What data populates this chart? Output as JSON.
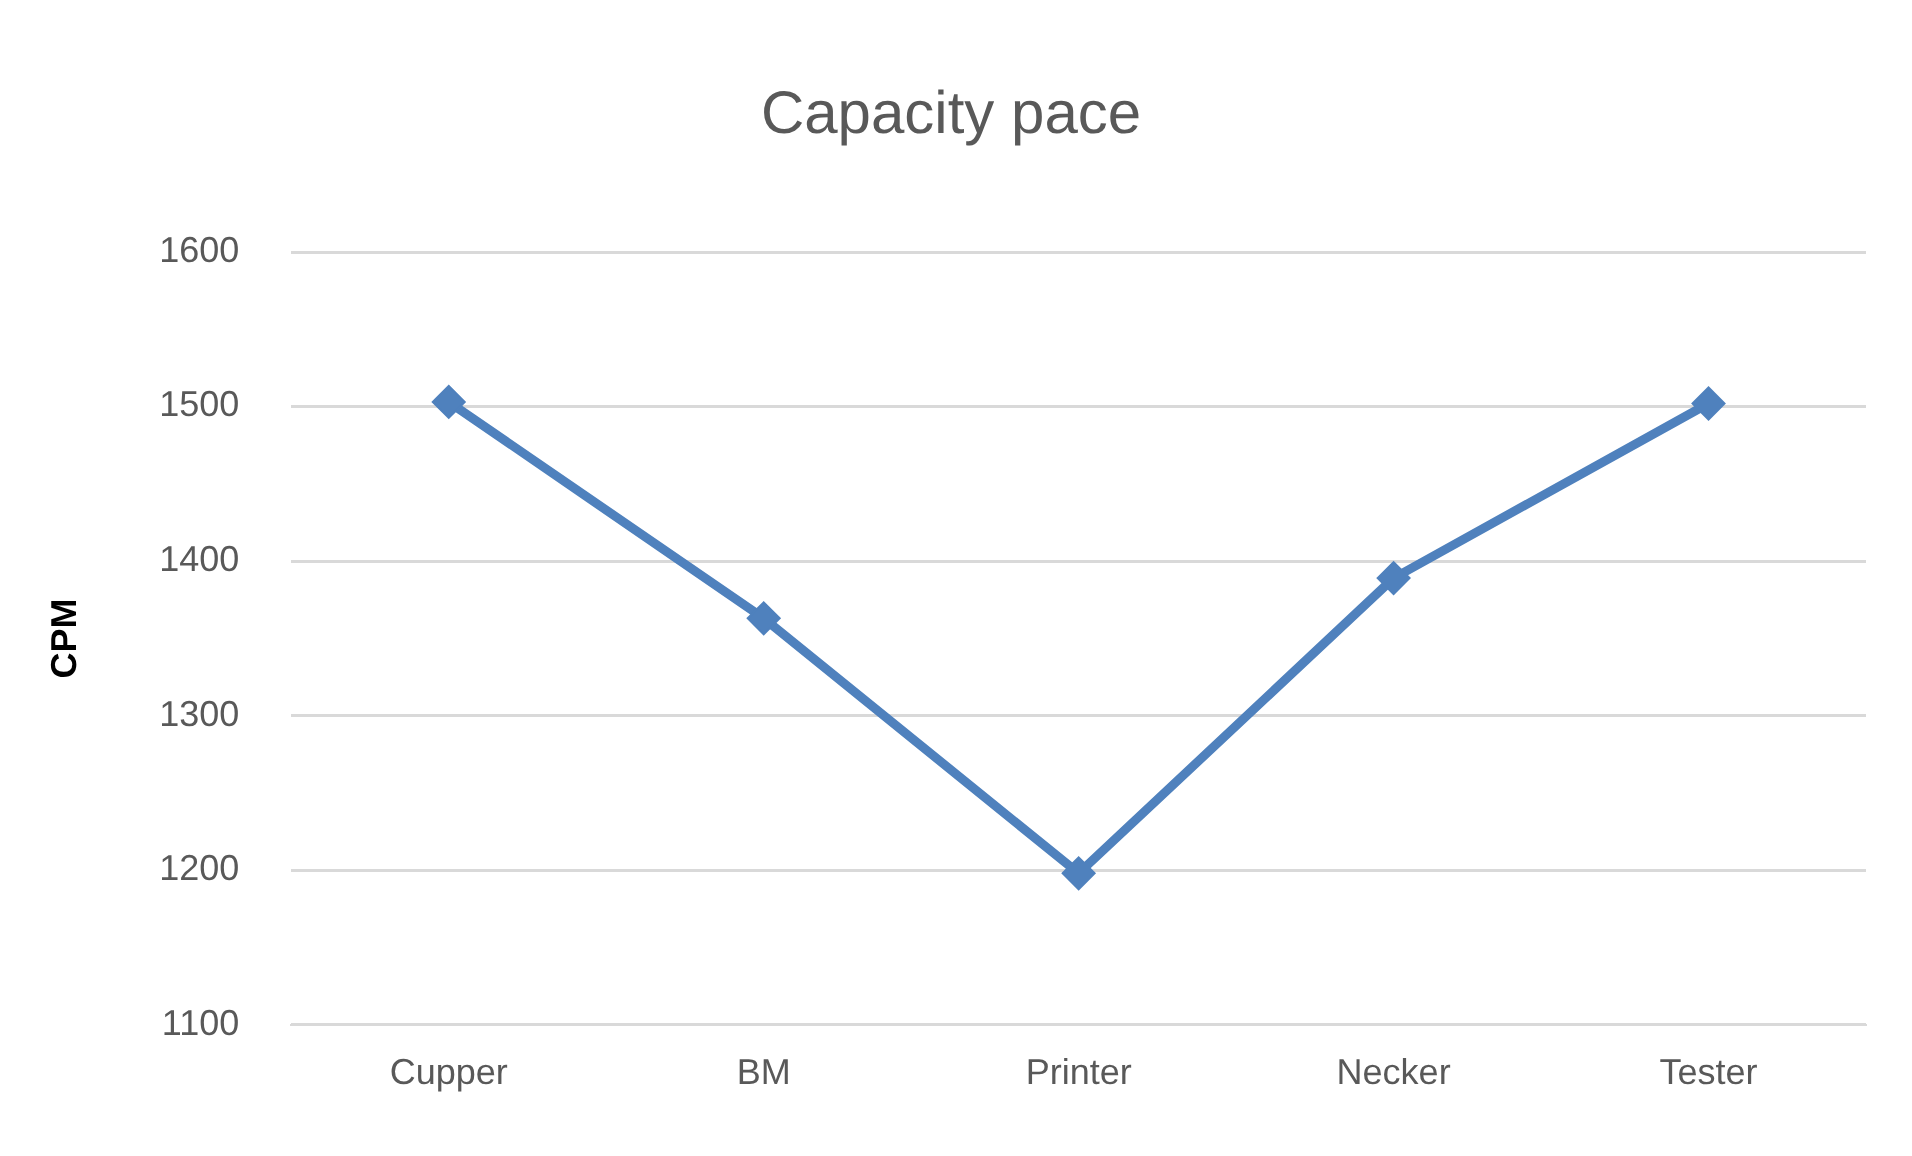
{
  "chart_data": {
    "type": "line",
    "title": "Capacity pace",
    "ylabel": "CPM",
    "categories": [
      "Cupper",
      "BM",
      "Printer",
      "Necker",
      "Tester"
    ],
    "series": [
      {
        "color": "#4f81bd",
        "values": [
          1503,
          1363,
          1198,
          1389,
          1502
        ]
      }
    ],
    "ylim": [
      1100,
      1600
    ],
    "yticks": [
      1100,
      1200,
      1300,
      1400,
      1500,
      1600
    ],
    "grid": "y",
    "legend": false,
    "marker": "diamond",
    "line_style": "solid"
  }
}
